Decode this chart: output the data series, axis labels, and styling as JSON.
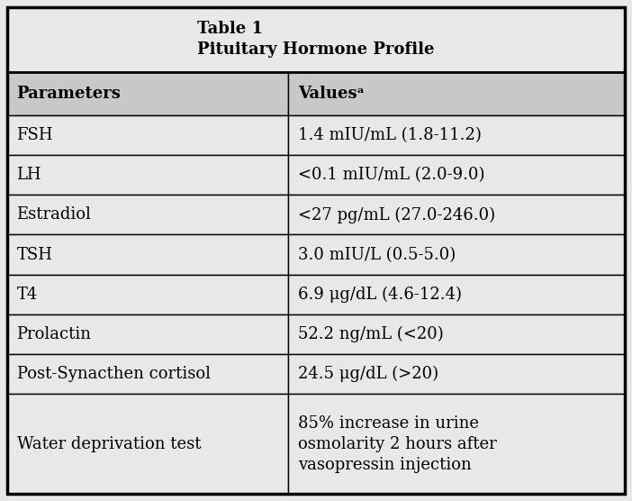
{
  "title_line1": "Table 1",
  "title_line2": "Pituitary Hormone Profile",
  "header": [
    "Parameters",
    "Valuesᵃ"
  ],
  "rows": [
    [
      "FSH",
      "1.4 mIU/mL (1.8-11.2)"
    ],
    [
      "LH",
      "<0.1 mIU/mL (2.0-9.0)"
    ],
    [
      "Estradiol",
      "<27 pg/mL (27.0-246.0)"
    ],
    [
      "TSH",
      "3.0 mIU/L (0.5-5.0)"
    ],
    [
      "T4",
      "6.9 μg/dL (4.6-12.4)"
    ],
    [
      "Prolactin",
      "52.2 ng/mL (<20)"
    ],
    [
      "Post-Synacthen cortisol",
      "24.5 μg/dL (>20)"
    ],
    [
      "Water deprivation test",
      "85% increase in urine\nosmolarity 2 hours after\nvasopressin injection"
    ]
  ],
  "col_split": 0.455,
  "bg_color_title": "#e8e8e8",
  "bg_color_header": "#c8c8c8",
  "bg_color_row": "#e8e8e8",
  "border_color": "#000000",
  "text_color": "#000000",
  "title_fontsize": 13,
  "header_fontsize": 13,
  "row_fontsize": 13,
  "fig_width": 7.02,
  "fig_height": 5.56,
  "dpi": 100
}
